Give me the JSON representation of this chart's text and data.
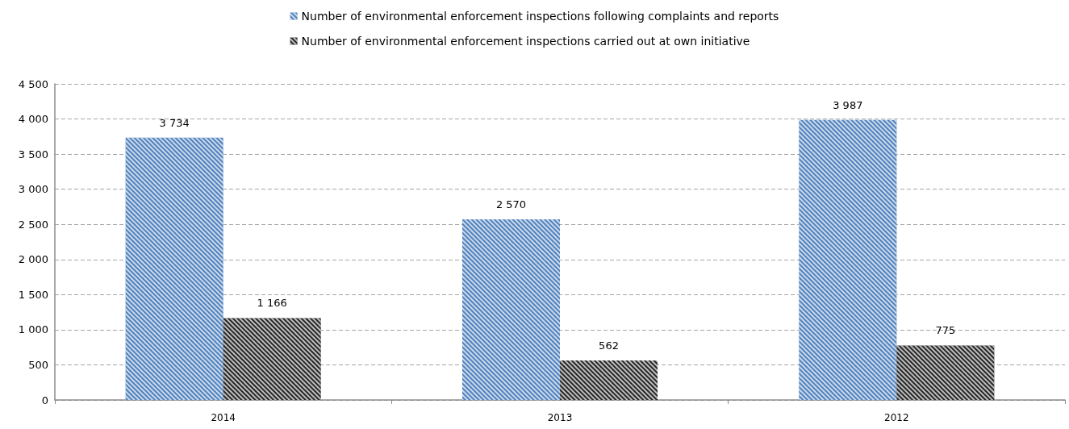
{
  "chart_data": {
    "type": "bar",
    "categories": [
      "2014",
      "2013",
      "2012"
    ],
    "series": [
      {
        "name": "Number of environmental enforcement inspections following complaints and reports",
        "color": "#4f81bd",
        "values": [
          3734,
          2570,
          3987
        ],
        "value_labels": [
          "3 734",
          "2 570",
          "3 987"
        ]
      },
      {
        "name": "Number of environmental enforcement inspections carried out at own initiative",
        "color": "#262626",
        "values": [
          1166,
          562,
          775
        ],
        "value_labels": [
          "1 166",
          "562",
          "775"
        ]
      }
    ],
    "ylim": [
      0,
      4500
    ],
    "yticks": [
      0,
      500,
      {
        "value": 1000,
        "label": "1 000"
      },
      {
        "value": 1500,
        "label": "1 500"
      },
      {
        "value": 2000,
        "label": "2 000"
      },
      {
        "value": 2500,
        "label": "2 500"
      },
      {
        "value": 3000,
        "label": "3 000"
      },
      {
        "value": 3500,
        "label": "3 500"
      },
      {
        "value": 4000,
        "label": "4 000"
      },
      {
        "value": 4500,
        "label": "4 500"
      }
    ],
    "grid": "y",
    "legend": "top"
  }
}
